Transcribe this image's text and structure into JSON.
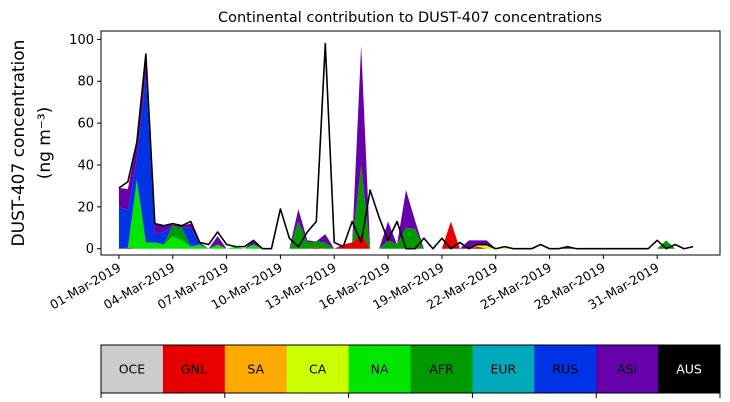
{
  "chart_data": {
    "type": "area",
    "stacked": true,
    "title": "Continental contribution to DUST-407 concentrations",
    "ylabel_line1": "DUST-407 concentration",
    "ylabel_line2": "(ng m⁻³)",
    "ylim": [
      -3,
      104
    ],
    "yticks": [
      0,
      20,
      40,
      60,
      80,
      100
    ],
    "xlim_day": [
      -1.0,
      33.5
    ],
    "x_start_date": "2019-03-01",
    "x_step_days": 0.5,
    "xtick_days": [
      0,
      3,
      6,
      9,
      12,
      15,
      18,
      21,
      24,
      27,
      30
    ],
    "xtick_labels": [
      "01-Mar-2019",
      "04-Mar-2019",
      "07-Mar-2019",
      "10-Mar-2019",
      "13-Mar-2019",
      "16-Mar-2019",
      "19-Mar-2019",
      "22-Mar-2019",
      "25-Mar-2019",
      "28-Mar-2019",
      "31-Mar-2019"
    ],
    "legend_placement": "bottom color bar",
    "series": [
      {
        "name": "OCE",
        "color": "#cccccc",
        "values": [
          0,
          0,
          0,
          0,
          0,
          0,
          0,
          0,
          0,
          0,
          0,
          0,
          0,
          0,
          0,
          0,
          0,
          0,
          0,
          0,
          0,
          0,
          0,
          0,
          0,
          0,
          0,
          0,
          0,
          0,
          0,
          0,
          0,
          0,
          0,
          0,
          0,
          0,
          0,
          0,
          0,
          0,
          0,
          0,
          0,
          0,
          0,
          0,
          0,
          0,
          0,
          0,
          0,
          0,
          0,
          0,
          0,
          0,
          0,
          0,
          0,
          0,
          0,
          0,
          0
        ]
      },
      {
        "name": "GNL",
        "color": "#e60000",
        "values": [
          0,
          0.5,
          0,
          0,
          0,
          0,
          0,
          0,
          0,
          0,
          0,
          0,
          0,
          0,
          0,
          0,
          0,
          0,
          0,
          0,
          0,
          0,
          0.5,
          0,
          0,
          2,
          3,
          7,
          0,
          0,
          0,
          0,
          0,
          0.5,
          0,
          0,
          0,
          13,
          0,
          0,
          1,
          0,
          0,
          0,
          0,
          0,
          0,
          0,
          0,
          0,
          0,
          0,
          0,
          0,
          0,
          0,
          0,
          0,
          0,
          0,
          0,
          0,
          0,
          0,
          0
        ]
      },
      {
        "name": "SA",
        "color": "#ffaa00",
        "values": [
          0,
          0,
          0,
          0,
          0,
          0,
          0,
          0,
          0,
          0,
          0,
          0,
          0,
          0,
          0,
          0,
          0,
          0,
          0,
          0,
          0,
          0,
          0,
          0,
          0,
          0,
          0,
          0,
          0,
          0,
          0,
          0,
          0,
          0,
          0,
          0,
          0,
          0,
          0,
          0,
          0,
          0,
          0,
          0,
          0,
          0,
          0,
          0,
          0,
          0,
          0,
          0,
          0,
          0,
          0,
          0,
          0,
          0,
          0,
          0,
          0,
          0,
          0,
          0,
          0
        ]
      },
      {
        "name": "CA",
        "color": "#ccff00",
        "values": [
          0,
          0,
          0,
          0,
          0,
          0,
          0,
          0,
          0,
          0,
          0,
          0,
          0,
          0,
          0,
          0,
          0,
          0,
          0,
          0,
          0,
          0,
          0,
          0,
          0,
          0,
          0,
          0,
          0,
          0,
          0,
          0,
          0,
          0,
          0,
          0,
          0,
          0,
          0,
          0,
          1,
          2,
          0,
          0.5,
          0,
          0,
          0.5,
          0,
          0,
          0,
          0,
          0,
          0,
          0,
          0,
          0,
          0,
          0,
          0,
          0,
          0,
          0,
          0,
          0,
          0
        ]
      },
      {
        "name": "NA",
        "color": "#00e600",
        "values": [
          0,
          0,
          33,
          3,
          3,
          2,
          6,
          4,
          1,
          2,
          0,
          2,
          0,
          1,
          0,
          2,
          0,
          0,
          0,
          0,
          0,
          0,
          0,
          0,
          0,
          0,
          0,
          0,
          0,
          0,
          0,
          0,
          0,
          0,
          0,
          0,
          0,
          0,
          0,
          0,
          0,
          0,
          0,
          0,
          0,
          0,
          0,
          0,
          0,
          0,
          0,
          0,
          0,
          0,
          0,
          0,
          0,
          0,
          0,
          0,
          0,
          0,
          0,
          0,
          0
        ]
      },
      {
        "name": "AFR",
        "color": "#009900",
        "values": [
          0,
          0,
          0,
          0,
          0,
          0,
          5,
          6,
          0,
          0,
          0,
          0,
          0,
          0,
          0,
          0,
          0,
          0,
          0,
          0,
          13,
          3,
          3,
          3,
          0,
          0,
          0,
          33,
          0,
          0,
          4,
          2,
          10,
          9,
          0,
          0,
          0,
          0,
          0,
          0,
          0,
          0,
          0,
          0,
          0,
          0,
          0,
          0,
          0,
          0,
          0,
          0,
          0,
          0,
          0,
          0,
          0,
          0,
          0,
          0,
          0,
          4,
          0,
          0,
          0
        ]
      },
      {
        "name": "EUR",
        "color": "#00aabb",
        "values": [
          0,
          0,
          0,
          0,
          0,
          0,
          0,
          0,
          0,
          0,
          0,
          0,
          0,
          0,
          0,
          0,
          0,
          0,
          0,
          0,
          0,
          0,
          0,
          0,
          0,
          0,
          0,
          0,
          0,
          0,
          0,
          0,
          0,
          0,
          0,
          0,
          0,
          0,
          0,
          0,
          0,
          0,
          0,
          0,
          0,
          0,
          0,
          0,
          0,
          0,
          0,
          0,
          0,
          0,
          0,
          0,
          0,
          0,
          0,
          0,
          0,
          0,
          0,
          0,
          0
        ]
      },
      {
        "name": "RUS",
        "color": "#0033e6",
        "values": [
          20,
          18,
          10,
          80,
          4,
          6,
          0,
          0,
          9,
          0,
          0,
          0,
          0,
          0,
          0,
          0,
          0,
          0,
          0,
          0,
          0,
          0,
          0,
          0,
          0,
          0,
          0,
          0,
          0,
          0,
          0,
          0,
          0,
          0,
          0,
          0,
          0,
          0,
          0,
          0,
          0,
          0,
          0,
          0,
          0,
          0,
          0,
          0,
          0,
          0,
          0,
          0,
          0,
          0,
          0,
          0,
          0,
          0,
          0,
          0,
          0,
          0,
          0,
          0,
          0
        ]
      },
      {
        "name": "ASI",
        "color": "#6600aa",
        "values": [
          9,
          10,
          8,
          10,
          5,
          3,
          0.5,
          1,
          2,
          1,
          0,
          4,
          0,
          0,
          0,
          2,
          0,
          0,
          0,
          0,
          6,
          1,
          0,
          4,
          0,
          0,
          0,
          57,
          0,
          0,
          9,
          0,
          18,
          4,
          0,
          0,
          0,
          0,
          0,
          4,
          2,
          2,
          0,
          0,
          0,
          0,
          0,
          0,
          0,
          0,
          1,
          0,
          0,
          0,
          0,
          0,
          0,
          0,
          0,
          0,
          0,
          0,
          0,
          0,
          0
        ]
      },
      {
        "name": "AUS",
        "color": "#000000",
        "values": [
          0,
          0,
          0,
          0,
          0,
          0,
          0,
          0,
          0,
          0,
          0,
          0,
          0,
          0,
          0,
          0,
          0,
          0,
          0,
          0,
          0,
          0,
          0,
          0,
          0,
          0,
          0,
          0,
          0,
          0,
          0,
          0,
          0,
          0,
          0,
          0,
          0,
          0,
          0,
          0,
          0,
          0,
          0,
          0,
          0,
          0,
          0,
          0,
          0,
          0,
          0,
          0,
          0,
          0,
          0,
          0,
          0,
          0,
          0,
          0,
          0,
          0,
          0,
          0,
          0
        ]
      }
    ],
    "total": [
      29,
      32,
      51,
      93,
      12,
      11,
      12,
      11,
      13,
      3,
      2,
      8,
      2,
      1,
      1,
      4,
      0,
      0,
      19,
      5,
      1,
      8,
      13,
      98,
      3,
      1,
      13,
      3,
      28,
      15,
      4,
      13,
      0,
      0,
      5,
      0,
      5,
      0,
      3,
      0,
      2,
      2,
      0,
      1,
      0,
      0,
      0,
      2,
      0,
      0,
      1,
      0,
      0,
      0,
      0,
      0,
      0,
      0,
      0,
      0,
      4,
      0,
      2,
      0,
      1
    ]
  }
}
